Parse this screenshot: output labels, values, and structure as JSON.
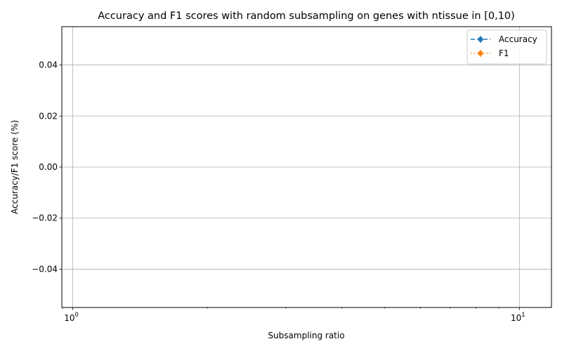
{
  "chart_data": {
    "type": "line",
    "title": "Accuracy and F1 scores with random subsampling on genes with ntissue in [0,10)",
    "xlabel": "Subsampling ratio",
    "ylabel": "Accuracy/F1 score (%)",
    "xscale": "log",
    "xlim": [
      0.945,
      11.8
    ],
    "ylim": [
      -0.055,
      0.055
    ],
    "grid": true,
    "legend_position": "top-right",
    "x_ticks": [
      {
        "value": 1,
        "base": "10",
        "exp": "0"
      },
      {
        "value": 10,
        "base": "10",
        "exp": "1"
      }
    ],
    "y_ticks": [
      {
        "value": 0.04,
        "label": "0.04"
      },
      {
        "value": 0.02,
        "label": "0.02"
      },
      {
        "value": 0.0,
        "label": "0.00"
      },
      {
        "value": -0.02,
        "label": "−0.02"
      },
      {
        "value": -0.04,
        "label": "−0.04"
      }
    ],
    "series": [
      {
        "name": "Accuracy",
        "color": "#1f77b4",
        "linestyle": "dashed",
        "marker": "circle",
        "errorbars": true,
        "x": [],
        "y": []
      },
      {
        "name": "F1",
        "color": "#ff7f0e",
        "linestyle": "dotted",
        "marker": "circle",
        "errorbars": true,
        "x": [],
        "y": []
      }
    ]
  }
}
